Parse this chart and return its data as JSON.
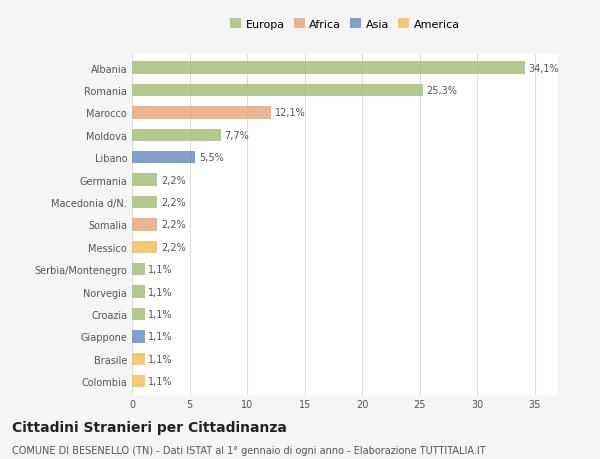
{
  "countries": [
    "Albania",
    "Romania",
    "Marocco",
    "Moldova",
    "Libano",
    "Germania",
    "Macedonia d/N.",
    "Somalia",
    "Messico",
    "Serbia/Montenegro",
    "Norvegia",
    "Croazia",
    "Giappone",
    "Brasile",
    "Colombia"
  ],
  "values": [
    34.1,
    25.3,
    12.1,
    7.7,
    5.5,
    2.2,
    2.2,
    2.2,
    2.2,
    1.1,
    1.1,
    1.1,
    1.1,
    1.1,
    1.1
  ],
  "labels": [
    "34,1%",
    "25,3%",
    "12,1%",
    "7,7%",
    "5,5%",
    "2,2%",
    "2,2%",
    "2,2%",
    "2,2%",
    "1,1%",
    "1,1%",
    "1,1%",
    "1,1%",
    "1,1%",
    "1,1%"
  ],
  "continents": [
    "Europa",
    "Europa",
    "Africa",
    "Europa",
    "Asia",
    "Europa",
    "Europa",
    "Africa",
    "America",
    "Europa",
    "Europa",
    "Europa",
    "Asia",
    "America",
    "America"
  ],
  "continent_colors": {
    "Europa": "#a8c07a",
    "Africa": "#e8a87c",
    "Asia": "#6a8fc0",
    "America": "#f0c060"
  },
  "legend_order": [
    "Europa",
    "Africa",
    "Asia",
    "America"
  ],
  "title": "Cittadini Stranieri per Cittadinanza",
  "subtitle": "COMUNE DI BESENELLO (TN) - Dati ISTAT al 1° gennaio di ogni anno - Elaborazione TUTTITALIA.IT",
  "xlim": [
    0,
    37
  ],
  "xticks": [
    0,
    5,
    10,
    15,
    20,
    25,
    30,
    35
  ],
  "bg_color": "#f5f5f5",
  "bar_bg_color": "#ffffff",
  "grid_color": "#dddddd",
  "label_color": "#555555",
  "title_fontsize": 10,
  "subtitle_fontsize": 7,
  "tick_fontsize": 7,
  "bar_label_fontsize": 7,
  "legend_fontsize": 8
}
